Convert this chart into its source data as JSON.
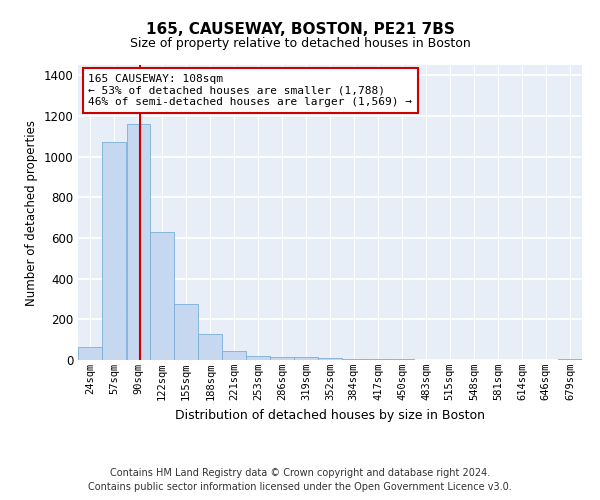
{
  "title": "165, CAUSEWAY, BOSTON, PE21 7BS",
  "subtitle": "Size of property relative to detached houses in Boston",
  "xlabel": "Distribution of detached houses by size in Boston",
  "ylabel": "Number of detached properties",
  "bar_color": "#c5d8f0",
  "bar_edge_color": "#7aafd4",
  "background_color": "#e8eef8",
  "grid_color": "#ffffff",
  "annotation_line1": "165 CAUSEWAY: 108sqm",
  "annotation_line2": "← 53% of detached houses are smaller (1,788)",
  "annotation_line3": "46% of semi-detached houses are larger (1,569) →",
  "annotation_box_color": "#ffffff",
  "annotation_box_edge_color": "#cc0000",
  "property_line_x": 108,
  "property_line_color": "#cc0000",
  "footer_line1": "Contains HM Land Registry data © Crown copyright and database right 2024.",
  "footer_line2": "Contains public sector information licensed under the Open Government Licence v3.0.",
  "bin_labels": [
    "24sqm",
    "57sqm",
    "90sqm",
    "122sqm",
    "155sqm",
    "188sqm",
    "221sqm",
    "253sqm",
    "286sqm",
    "319sqm",
    "352sqm",
    "384sqm",
    "417sqm",
    "450sqm",
    "483sqm",
    "515sqm",
    "548sqm",
    "581sqm",
    "614sqm",
    "646sqm",
    "679sqm"
  ],
  "bin_starts": [
    24,
    57,
    90,
    122,
    155,
    188,
    221,
    253,
    286,
    319,
    352,
    384,
    417,
    450,
    483,
    515,
    548,
    581,
    614,
    646,
    679
  ],
  "bin_width": 33,
  "bar_heights": [
    65,
    1070,
    1160,
    630,
    275,
    130,
    45,
    20,
    15,
    15,
    10,
    5,
    3,
    3,
    2,
    2,
    2,
    1,
    1,
    1,
    5
  ],
  "ylim": [
    0,
    1450
  ],
  "yticks": [
    0,
    200,
    400,
    600,
    800,
    1000,
    1200,
    1400
  ],
  "title_fontsize": 11,
  "subtitle_fontsize": 9
}
